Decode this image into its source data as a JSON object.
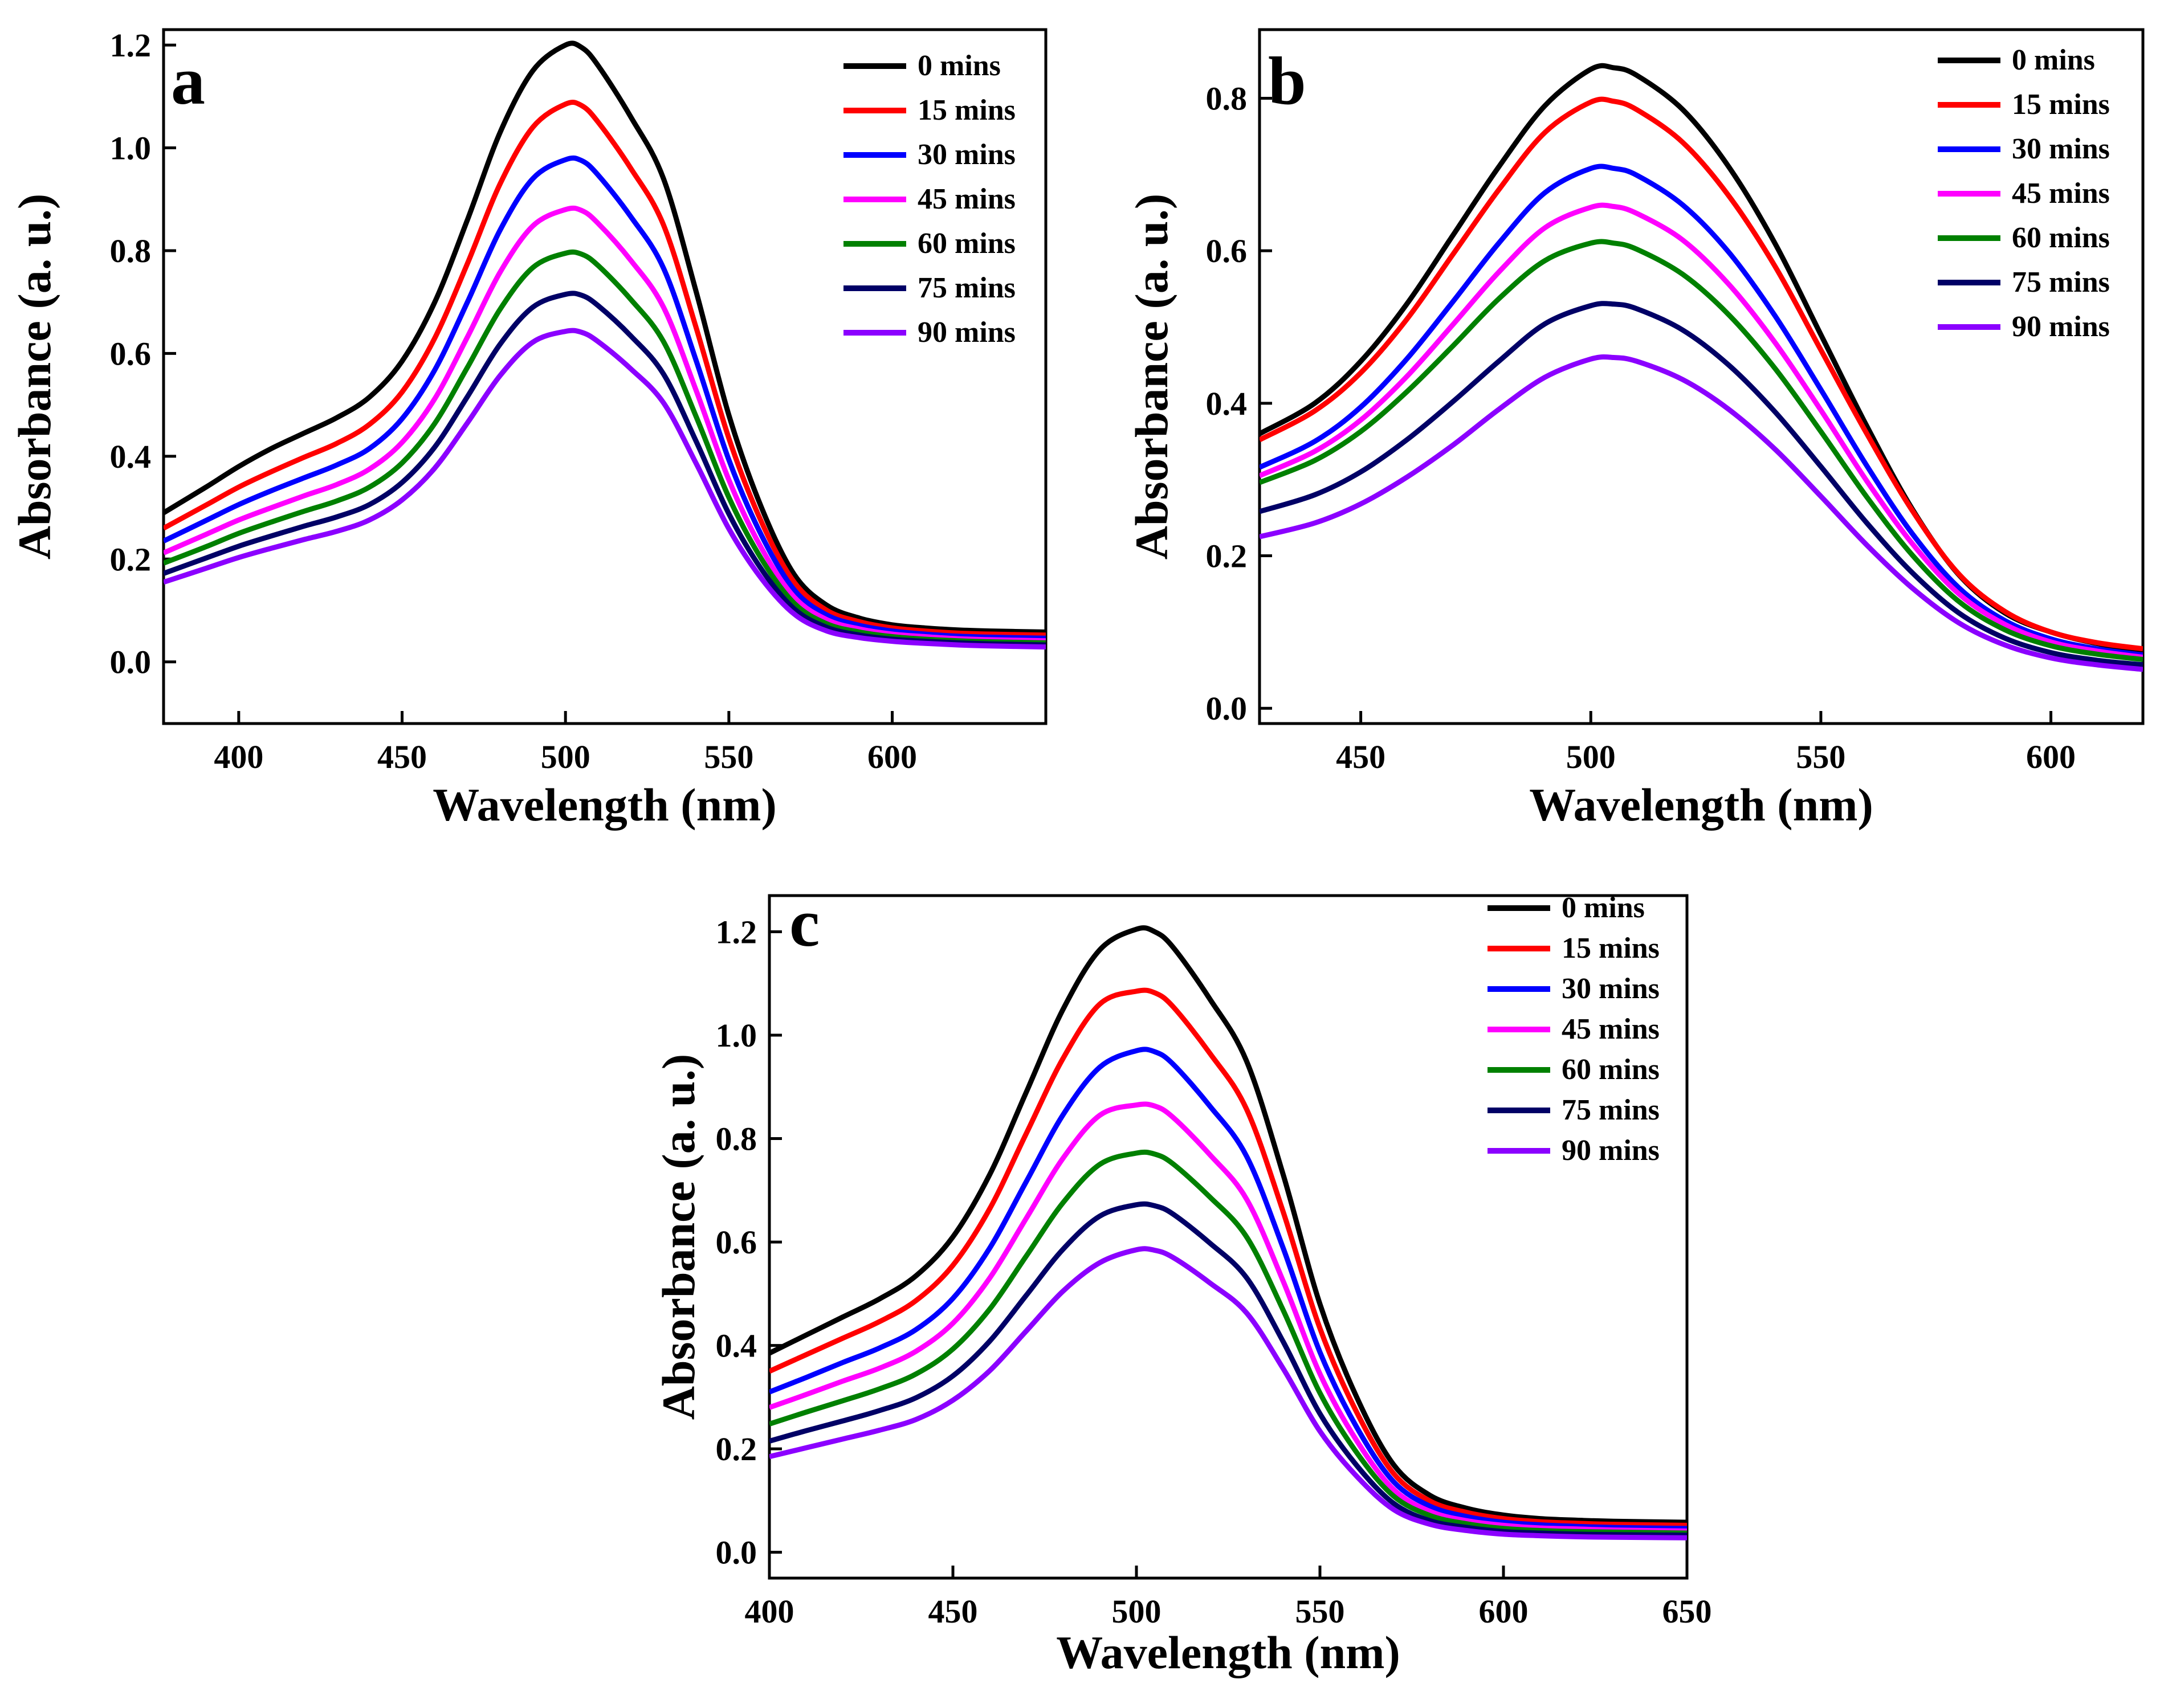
{
  "figure_caption": "",
  "chart_data": [
    {
      "panel": "a",
      "type": "line",
      "title": "a",
      "xlabel": "Wavelength (nm)",
      "ylabel": "Absorbance (a. u.)",
      "xlim": [
        377,
        647
      ],
      "ylim": [
        -0.12,
        1.23
      ],
      "xticks": [
        400,
        450,
        500,
        550,
        600
      ],
      "yticks": [
        0.0,
        0.2,
        0.4,
        0.6,
        0.8,
        1.0,
        1.2
      ],
      "legend_position": "top-right",
      "grid": false,
      "x": [
        377,
        390,
        400,
        410,
        420,
        430,
        440,
        450,
        460,
        470,
        480,
        490,
        500,
        505,
        510,
        520,
        530,
        540,
        550,
        560,
        570,
        580,
        590,
        600,
        610,
        620,
        630,
        647
      ],
      "series": [
        {
          "name": "0 mins",
          "color": "#000000",
          "values": [
            0.29,
            0.34,
            0.38,
            0.415,
            0.445,
            0.475,
            0.515,
            0.585,
            0.7,
            0.86,
            1.03,
            1.15,
            1.2,
            1.195,
            1.16,
            1.06,
            0.94,
            0.72,
            0.48,
            0.3,
            0.17,
            0.11,
            0.085,
            0.072,
            0.066,
            0.062,
            0.06,
            0.058
          ]
        },
        {
          "name": "15 mins",
          "color": "#ff0000",
          "values": [
            0.26,
            0.305,
            0.34,
            0.37,
            0.398,
            0.425,
            0.462,
            0.525,
            0.63,
            0.775,
            0.93,
            1.04,
            1.085,
            1.082,
            1.05,
            0.96,
            0.85,
            0.65,
            0.435,
            0.272,
            0.155,
            0.1,
            0.078,
            0.066,
            0.06,
            0.056,
            0.054,
            0.052
          ]
        },
        {
          "name": "30 mins",
          "color": "#0000ff",
          "values": [
            0.235,
            0.275,
            0.306,
            0.333,
            0.358,
            0.383,
            0.415,
            0.473,
            0.568,
            0.7,
            0.84,
            0.94,
            0.977,
            0.975,
            0.947,
            0.866,
            0.766,
            0.586,
            0.393,
            0.246,
            0.14,
            0.091,
            0.071,
            0.06,
            0.054,
            0.05,
            0.048,
            0.046
          ]
        },
        {
          "name": "45 mins",
          "color": "#ff00ff",
          "values": [
            0.212,
            0.248,
            0.276,
            0.3,
            0.323,
            0.345,
            0.375,
            0.427,
            0.512,
            0.632,
            0.758,
            0.848,
            0.88,
            0.878,
            0.853,
            0.781,
            0.69,
            0.528,
            0.354,
            0.221,
            0.126,
            0.082,
            0.064,
            0.054,
            0.049,
            0.045,
            0.043,
            0.041
          ]
        },
        {
          "name": "60 mins",
          "color": "#008000",
          "values": [
            0.192,
            0.224,
            0.25,
            0.272,
            0.293,
            0.313,
            0.34,
            0.387,
            0.464,
            0.573,
            0.686,
            0.767,
            0.795,
            0.793,
            0.771,
            0.705,
            0.623,
            0.477,
            0.32,
            0.2,
            0.114,
            0.074,
            0.058,
            0.049,
            0.044,
            0.041,
            0.039,
            0.037
          ]
        },
        {
          "name": "75 mins",
          "color": "#000066",
          "values": [
            0.172,
            0.202,
            0.225,
            0.245,
            0.264,
            0.282,
            0.306,
            0.349,
            0.418,
            0.516,
            0.618,
            0.69,
            0.715,
            0.713,
            0.693,
            0.634,
            0.56,
            0.429,
            0.288,
            0.18,
            0.103,
            0.067,
            0.052,
            0.044,
            0.04,
            0.037,
            0.035,
            0.033
          ]
        },
        {
          "name": "90 mins",
          "color": "#8b00ff",
          "values": [
            0.155,
            0.182,
            0.203,
            0.221,
            0.238,
            0.254,
            0.276,
            0.315,
            0.377,
            0.465,
            0.557,
            0.622,
            0.643,
            0.641,
            0.623,
            0.57,
            0.504,
            0.386,
            0.259,
            0.162,
            0.093,
            0.06,
            0.047,
            0.04,
            0.036,
            0.033,
            0.031,
            0.029
          ]
        }
      ]
    },
    {
      "panel": "b",
      "type": "line",
      "title": "b",
      "xlabel": "Wavelength (nm)",
      "ylabel": "Absorbance (a. u.)",
      "xlim": [
        428,
        620
      ],
      "ylim": [
        -0.02,
        0.89
      ],
      "xticks": [
        450,
        500,
        550,
        600
      ],
      "yticks": [
        0.0,
        0.2,
        0.4,
        0.6,
        0.8
      ],
      "legend_position": "top-right",
      "grid": false,
      "x": [
        428,
        440,
        450,
        460,
        470,
        480,
        490,
        500,
        505,
        510,
        520,
        530,
        540,
        550,
        560,
        570,
        580,
        590,
        600,
        610,
        620
      ],
      "series": [
        {
          "name": "0 mins",
          "color": "#000000",
          "values": [
            0.36,
            0.4,
            0.455,
            0.53,
            0.62,
            0.71,
            0.79,
            0.838,
            0.84,
            0.83,
            0.785,
            0.71,
            0.61,
            0.49,
            0.37,
            0.26,
            0.175,
            0.125,
            0.1,
            0.085,
            0.075
          ]
        },
        {
          "name": "15 mins",
          "color": "#ff0000",
          "values": [
            0.352,
            0.39,
            0.44,
            0.51,
            0.595,
            0.68,
            0.755,
            0.795,
            0.796,
            0.785,
            0.742,
            0.672,
            0.58,
            0.47,
            0.36,
            0.258,
            0.176,
            0.127,
            0.1,
            0.086,
            0.078
          ]
        },
        {
          "name": "30 mins",
          "color": "#0000ff",
          "values": [
            0.316,
            0.35,
            0.395,
            0.458,
            0.533,
            0.61,
            0.676,
            0.708,
            0.708,
            0.699,
            0.66,
            0.598,
            0.515,
            0.418,
            0.318,
            0.228,
            0.158,
            0.115,
            0.091,
            0.078,
            0.07
          ]
        },
        {
          "name": "45 mins",
          "color": "#ff00ff",
          "values": [
            0.305,
            0.337,
            0.378,
            0.435,
            0.503,
            0.572,
            0.63,
            0.657,
            0.658,
            0.649,
            0.614,
            0.556,
            0.48,
            0.391,
            0.298,
            0.215,
            0.15,
            0.11,
            0.087,
            0.075,
            0.067
          ]
        },
        {
          "name": "60 mins",
          "color": "#008000",
          "values": [
            0.296,
            0.325,
            0.363,
            0.415,
            0.475,
            0.537,
            0.587,
            0.61,
            0.61,
            0.602,
            0.569,
            0.516,
            0.446,
            0.363,
            0.277,
            0.2,
            0.14,
            0.103,
            0.082,
            0.071,
            0.064
          ]
        },
        {
          "name": "75 mins",
          "color": "#000066",
          "values": [
            0.258,
            0.28,
            0.31,
            0.352,
            0.402,
            0.455,
            0.504,
            0.528,
            0.53,
            0.524,
            0.496,
            0.45,
            0.389,
            0.317,
            0.243,
            0.177,
            0.125,
            0.092,
            0.073,
            0.063,
            0.057
          ]
        },
        {
          "name": "90 mins",
          "color": "#8b00ff",
          "values": [
            0.225,
            0.243,
            0.268,
            0.303,
            0.345,
            0.392,
            0.434,
            0.458,
            0.46,
            0.455,
            0.431,
            0.392,
            0.34,
            0.278,
            0.214,
            0.157,
            0.112,
            0.083,
            0.066,
            0.057,
            0.051
          ]
        }
      ]
    },
    {
      "panel": "c",
      "type": "line",
      "title": "c",
      "xlabel": "Wavelength (nm)",
      "ylabel": "Absorbance (a. u.)",
      "xlim": [
        400,
        650
      ],
      "ylim": [
        -0.05,
        1.27
      ],
      "xticks": [
        400,
        450,
        500,
        550,
        600,
        650
      ],
      "yticks": [
        0.0,
        0.2,
        0.4,
        0.6,
        0.8,
        1.0,
        1.2
      ],
      "legend_position": "top-right",
      "grid": false,
      "x": [
        400,
        410,
        420,
        430,
        440,
        450,
        460,
        470,
        480,
        490,
        500,
        505,
        510,
        520,
        530,
        540,
        550,
        560,
        570,
        580,
        590,
        600,
        610,
        620,
        630,
        650
      ],
      "series": [
        {
          "name": "0 mins",
          "color": "#000000",
          "values": [
            0.385,
            0.42,
            0.455,
            0.49,
            0.535,
            0.61,
            0.73,
            0.89,
            1.05,
            1.165,
            1.205,
            1.2,
            1.17,
            1.07,
            0.95,
            0.73,
            0.48,
            0.3,
            0.17,
            0.11,
            0.085,
            0.072,
            0.065,
            0.062,
            0.06,
            0.058
          ]
        },
        {
          "name": "15 mins",
          "color": "#ff0000",
          "values": [
            0.35,
            0.382,
            0.414,
            0.446,
            0.487,
            0.555,
            0.664,
            0.81,
            0.955,
            1.06,
            1.085,
            1.082,
            1.055,
            0.965,
            0.857,
            0.658,
            0.433,
            0.271,
            0.153,
            0.099,
            0.077,
            0.065,
            0.059,
            0.056,
            0.054,
            0.052
          ]
        },
        {
          "name": "30 mins",
          "color": "#0000ff",
          "values": [
            0.31,
            0.338,
            0.367,
            0.395,
            0.431,
            0.491,
            0.588,
            0.717,
            0.846,
            0.938,
            0.97,
            0.968,
            0.944,
            0.863,
            0.766,
            0.588,
            0.387,
            0.242,
            0.137,
            0.089,
            0.069,
            0.058,
            0.053,
            0.05,
            0.048,
            0.046
          ]
        },
        {
          "name": "45 mins",
          "color": "#ff00ff",
          "values": [
            0.28,
            0.305,
            0.331,
            0.356,
            0.389,
            0.443,
            0.53,
            0.646,
            0.762,
            0.845,
            0.865,
            0.863,
            0.841,
            0.769,
            0.683,
            0.524,
            0.345,
            0.216,
            0.122,
            0.079,
            0.061,
            0.052,
            0.047,
            0.045,
            0.043,
            0.041
          ]
        },
        {
          "name": "60 mins",
          "color": "#008000",
          "values": [
            0.248,
            0.271,
            0.293,
            0.316,
            0.345,
            0.393,
            0.47,
            0.573,
            0.676,
            0.75,
            0.772,
            0.77,
            0.751,
            0.687,
            0.61,
            0.468,
            0.308,
            0.193,
            0.109,
            0.071,
            0.055,
            0.046,
            0.042,
            0.04,
            0.039,
            0.037
          ]
        },
        {
          "name": "75 mins",
          "color": "#000066",
          "values": [
            0.215,
            0.235,
            0.254,
            0.274,
            0.299,
            0.341,
            0.408,
            0.497,
            0.586,
            0.65,
            0.672,
            0.67,
            0.654,
            0.598,
            0.531,
            0.407,
            0.268,
            0.168,
            0.095,
            0.061,
            0.048,
            0.04,
            0.037,
            0.035,
            0.034,
            0.033
          ]
        },
        {
          "name": "90 mins",
          "color": "#8b00ff",
          "values": [
            0.185,
            0.202,
            0.219,
            0.236,
            0.257,
            0.294,
            0.351,
            0.428,
            0.505,
            0.56,
            0.585,
            0.584,
            0.57,
            0.521,
            0.463,
            0.355,
            0.234,
            0.147,
            0.083,
            0.054,
            0.042,
            0.035,
            0.032,
            0.03,
            0.029,
            0.028
          ]
        }
      ]
    }
  ]
}
